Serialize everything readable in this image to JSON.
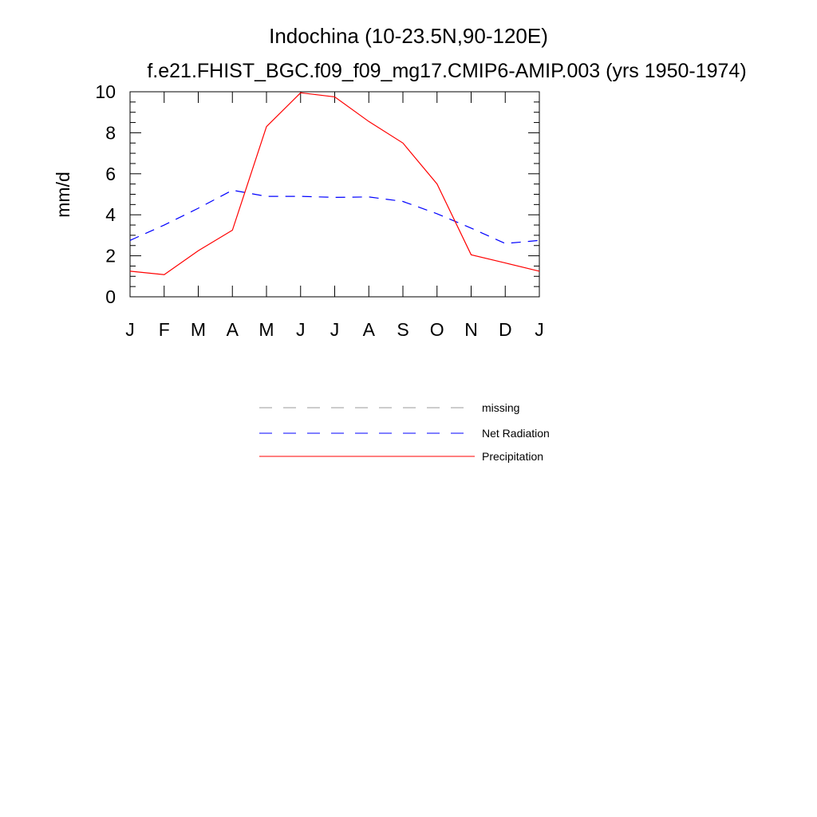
{
  "chart_data": {
    "type": "line",
    "title": "Indochina (10-23.5N,90-120E)",
    "subtitle": "f.e21.FHIST_BGC.f09_f09_mg17.CMIP6-AMIP.003 (yrs 1950-1974)",
    "xlabel": "",
    "ylabel": "mm/d",
    "ylim": [
      0,
      10
    ],
    "yticks": [
      0,
      2,
      4,
      6,
      8,
      10
    ],
    "categories": [
      "J",
      "F",
      "M",
      "A",
      "M",
      "J",
      "J",
      "A",
      "S",
      "O",
      "N",
      "D",
      "J"
    ],
    "grid": false,
    "series": [
      {
        "name": "Net Radiation",
        "style": "dashed",
        "color": "#0000ff",
        "values": [
          2.75,
          3.5,
          4.32,
          5.2,
          4.9,
          4.9,
          4.85,
          4.87,
          4.65,
          4.05,
          3.35,
          2.6,
          2.75
        ]
      },
      {
        "name": "Precipitation",
        "style": "solid",
        "color": "#ff0000",
        "values": [
          1.25,
          1.08,
          2.25,
          3.25,
          8.3,
          9.95,
          9.75,
          8.55,
          7.5,
          5.5,
          2.05,
          1.65,
          1.25
        ]
      }
    ],
    "legend": {
      "position": "bottom",
      "entries": [
        {
          "label": "missing",
          "style": "dashed",
          "color": "#999999"
        },
        {
          "label": "Net Radiation",
          "style": "dashed",
          "color": "#0000ff"
        },
        {
          "label": "Precipitation",
          "style": "solid",
          "color": "#ff0000"
        }
      ]
    }
  }
}
